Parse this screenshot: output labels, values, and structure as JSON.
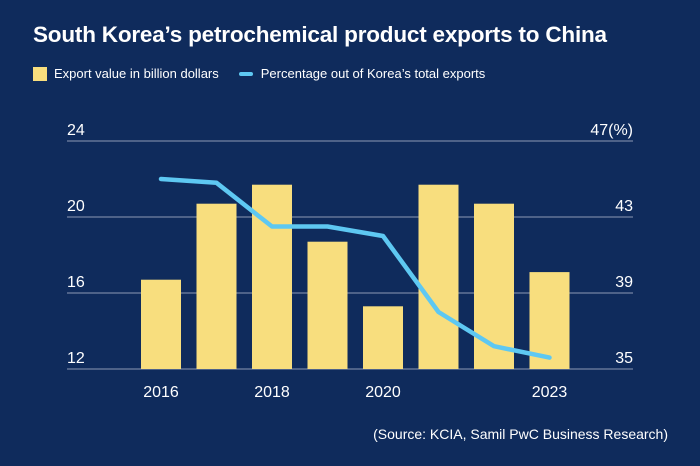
{
  "chart_data": {
    "type": "bar",
    "title": "South Korea’s petrochemical product exports to China",
    "legend": {
      "bar_label": "Export value in billion dollars",
      "line_label": "Percentage out of Korea’s total exports",
      "placement": "top-left"
    },
    "x": [
      2016,
      2017,
      2018,
      2019,
      2020,
      2021,
      2022,
      2023
    ],
    "x_tick_labels": [
      "2016",
      "",
      "2018",
      "",
      "2020",
      "",
      "",
      "2023"
    ],
    "series": [
      {
        "name": "Export value in billion dollars",
        "type": "bar",
        "axis": "left",
        "values": [
          16.7,
          20.7,
          21.7,
          18.7,
          15.3,
          21.7,
          20.7,
          17.1
        ]
      },
      {
        "name": "Percentage out of Korea’s total exports",
        "type": "line",
        "axis": "right",
        "values": [
          45.0,
          44.8,
          42.5,
          42.5,
          42.0,
          38.0,
          36.2,
          35.6
        ]
      }
    ],
    "y_left": {
      "ylim": [
        12,
        24
      ],
      "ticks": [
        "12",
        "16",
        "20",
        "24"
      ]
    },
    "y_right": {
      "ylim": [
        35,
        47
      ],
      "ticks": [
        "35",
        "39",
        "43",
        "47(%)"
      ]
    },
    "grid": true,
    "colors": {
      "bar": "#f8de7e",
      "line": "#5ec8f2",
      "grid": "#8c9ab5",
      "background": "#0f2b5c"
    },
    "source": "(Source: KCIA, Samil PwC Business Research)"
  }
}
